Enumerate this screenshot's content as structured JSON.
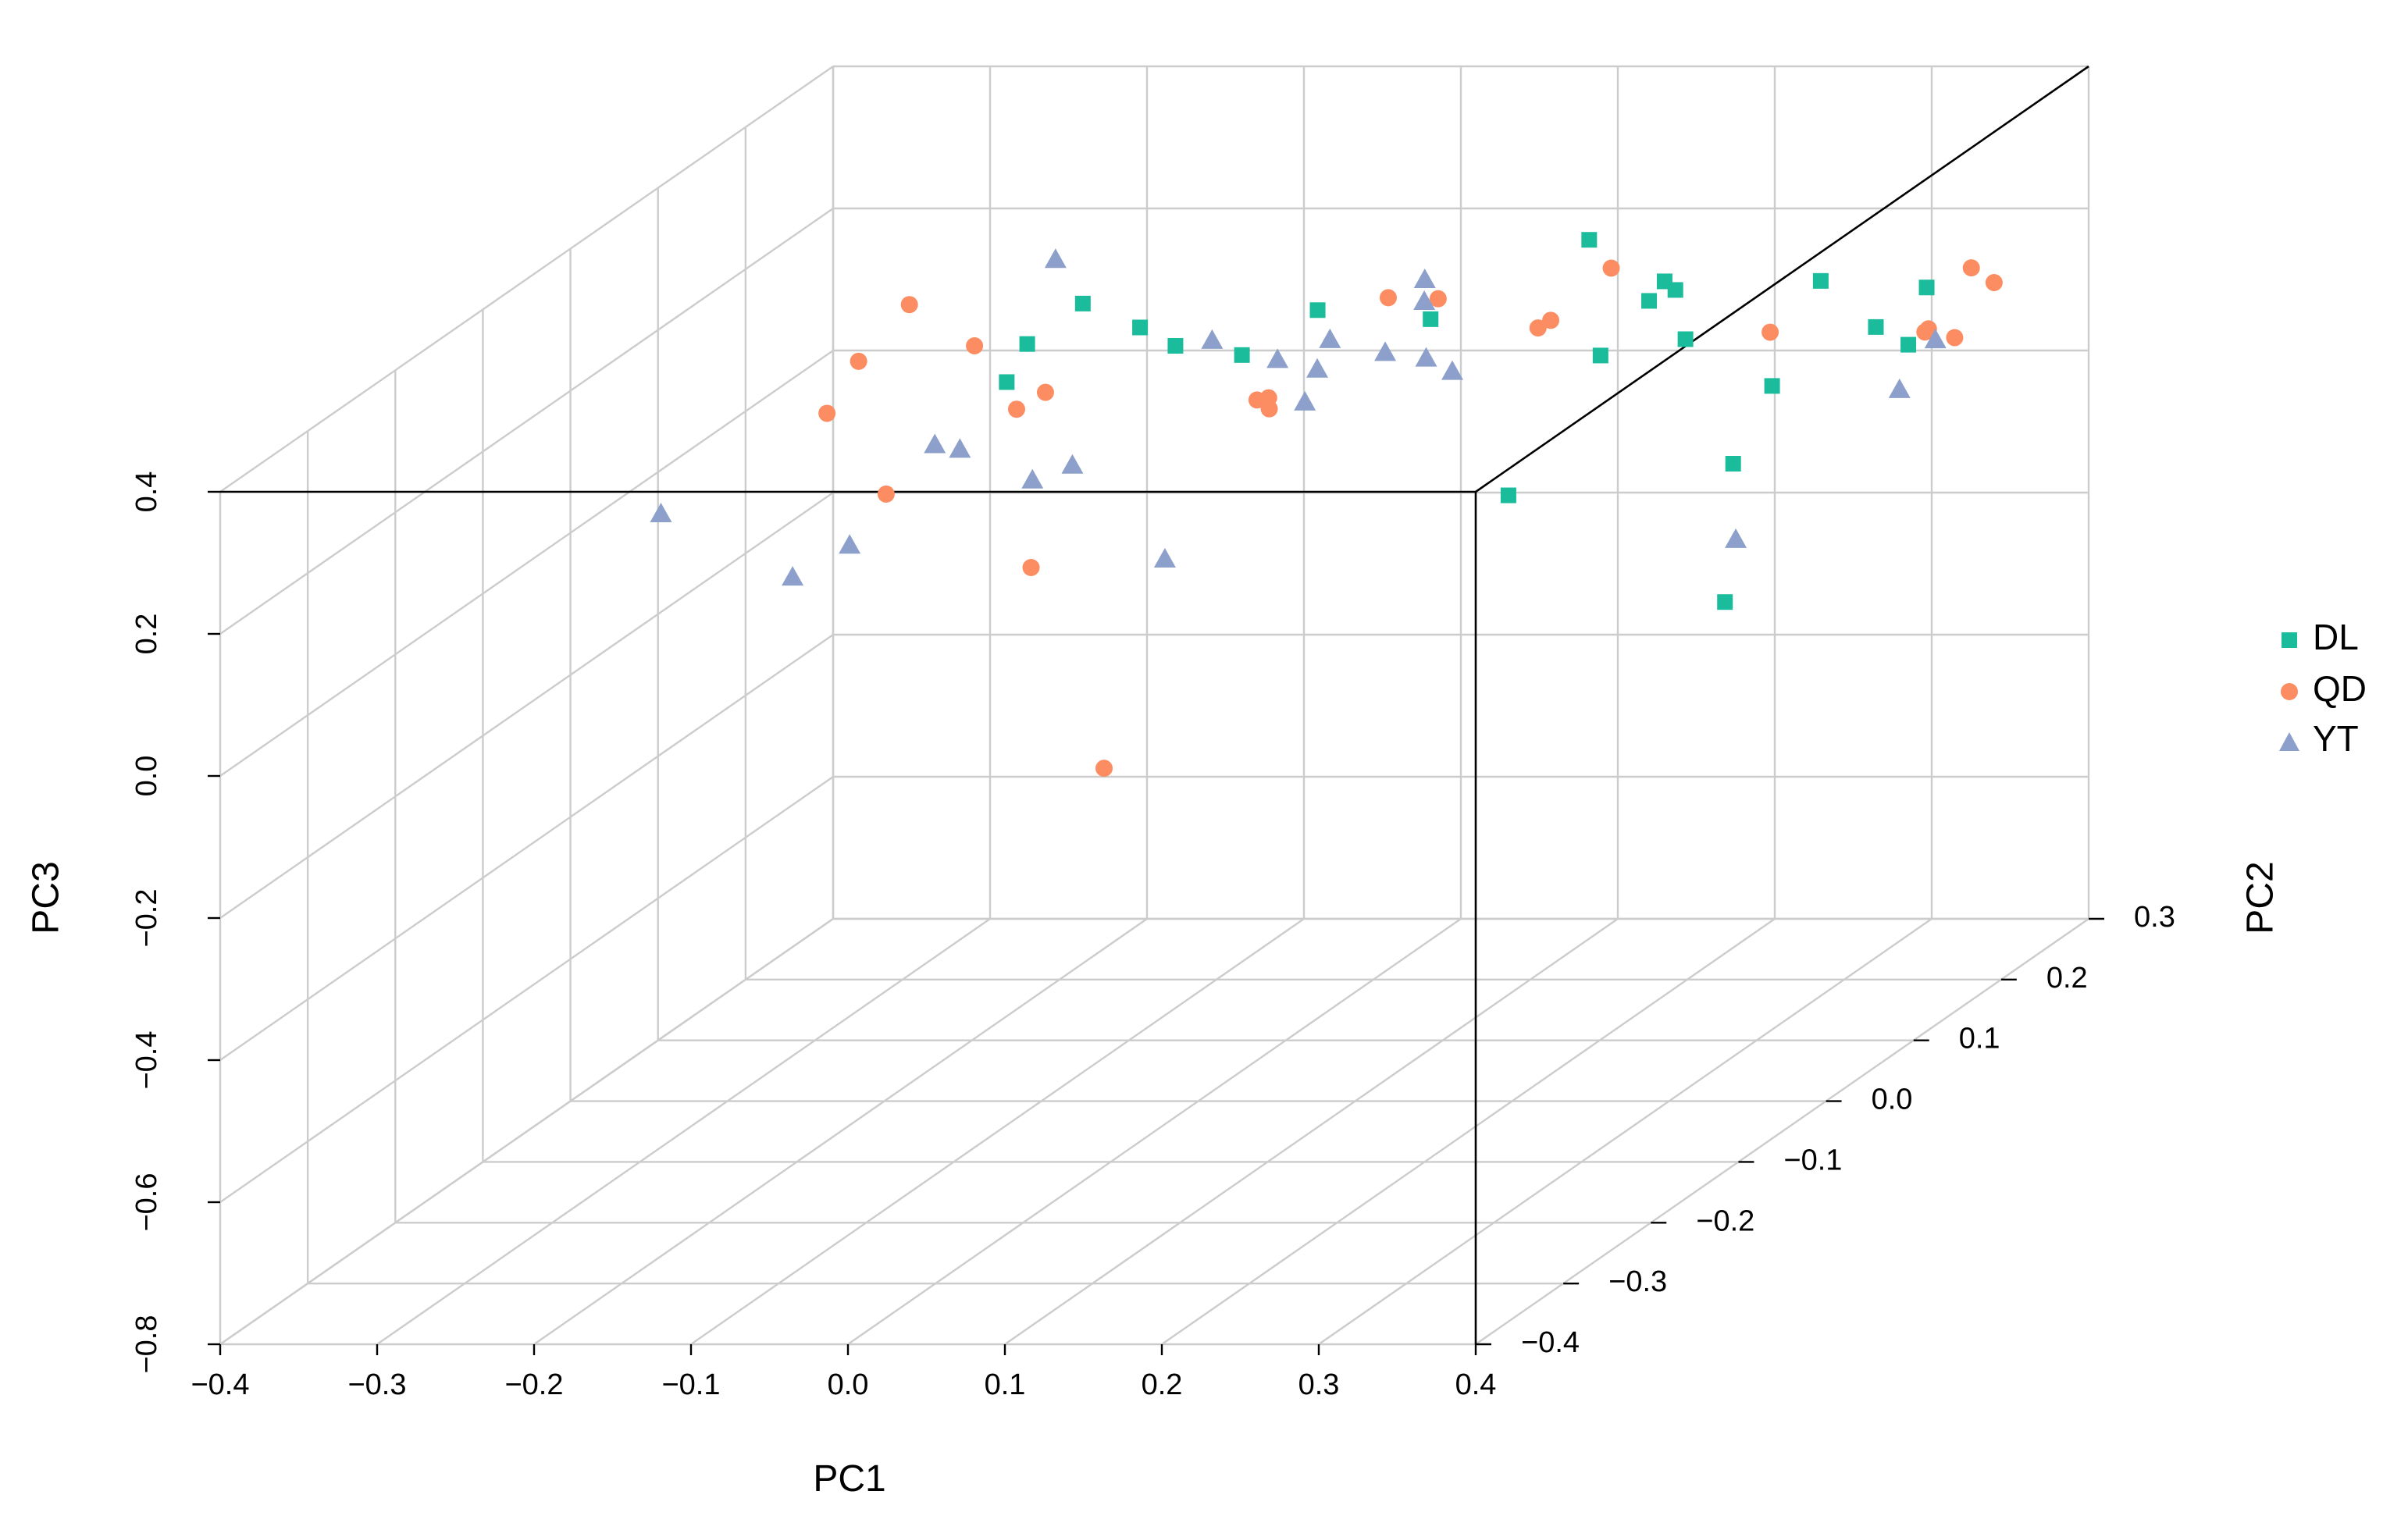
{
  "chart_data": {
    "type": "scatter",
    "projection": "3d",
    "xlabel": "PC1",
    "ylabel": "PC2",
    "zlabel": "PC3",
    "xlim": [
      -0.4,
      0.4
    ],
    "ylim": [
      -0.4,
      0.3
    ],
    "zlim": [
      -0.8,
      0.4
    ],
    "x_ticks": [
      "−0.4",
      "−0.3",
      "−0.2",
      "−0.1",
      "0.0",
      "0.1",
      "0.2",
      "0.3",
      "0.4"
    ],
    "y_ticks": [
      "−0.4",
      "−0.3",
      "−0.2",
      "−0.1",
      "0.0",
      "0.1",
      "0.2",
      "0.3"
    ],
    "z_ticks": [
      "−0.8",
      "−0.6",
      "−0.4",
      "−0.2",
      "0.0",
      "0.2",
      "0.4"
    ],
    "grid": true,
    "legend_position": "right",
    "series": [
      {
        "name": "DL",
        "marker": "square",
        "color": "#1abc9c",
        "points": [
          {
            "x": -0.059,
            "y": -0.026,
            "z": 0.345
          },
          {
            "x": 0.051,
            "y": 0.045,
            "z": 0.275
          },
          {
            "x": 0.128,
            "y": 0.036,
            "z": 0.27
          },
          {
            "x": 0.224,
            "y": 0.058,
            "z": 0.2
          },
          {
            "x": 0.166,
            "y": 0.149,
            "z": 0.285
          },
          {
            "x": 0.224,
            "y": 0.155,
            "z": 0.14
          },
          {
            "x": 0.265,
            "y": 0.07,
            "z": 0.282
          },
          {
            "x": 0.27,
            "y": 0.031,
            "z": 0.3
          },
          {
            "x": 0.305,
            "y": -0.014,
            "z": 0.366
          },
          {
            "x": 0.4,
            "y": 0.057,
            "z": 0.241
          },
          {
            "x": 0.318,
            "y": 0.141,
            "z": 0.234
          },
          {
            "x": 0.39,
            "y": 0.112,
            "z": 0.169
          },
          {
            "x": 0.4,
            "y": 0.115,
            "z": 0.247
          },
          {
            "x": 0.388,
            "y": -0.04,
            "z": 0.241
          },
          {
            "x": 0.4,
            "y": -0.106,
            "z": 0.188
          },
          {
            "x": 0.392,
            "y": -0.101,
            "z": -0.011
          },
          {
            "x": 0.22,
            "y": -0.04,
            "z": 0.087
          },
          {
            "x": 0.002,
            "y": -0.07,
            "z": 0.349
          },
          {
            "x": -0.071,
            "y": -0.068,
            "z": 0.324
          },
          {
            "x": -0.029,
            "y": 0.026,
            "z": 0.241
          },
          {
            "x": -0.098,
            "y": -0.043,
            "z": 0.249
          },
          {
            "x": 0.029,
            "y": -0.002,
            "z": 0.252
          }
        ]
      },
      {
        "name": "QD",
        "marker": "circle",
        "color": "#fc8d62",
        "points": [
          {
            "x": 0.101,
            "y": 0.093,
            "z": 0.25
          },
          {
            "x": 0.057,
            "y": -0.035,
            "z": 0.217
          },
          {
            "x": 0.022,
            "y": 0.041,
            "z": 0.155
          },
          {
            "x": 0.168,
            "y": 0.087,
            "z": 0.214
          },
          {
            "x": 0.223,
            "y": 0.072,
            "z": 0.311
          },
          {
            "x": 0.125,
            "y": -0.007,
            "z": 0.337
          },
          {
            "x": 0.233,
            "y": -0.015,
            "z": 0.312
          },
          {
            "x": 0.312,
            "y": 0.094,
            "z": 0.202
          },
          {
            "x": 0.4,
            "y": 0.166,
            "z": 0.231
          },
          {
            "x": 0.4,
            "y": 0.113,
            "z": 0.186
          },
          {
            "x": 0.4,
            "y": 0.117,
            "z": 0.187
          },
          {
            "x": 0.4,
            "y": 0.147,
            "z": 0.149
          },
          {
            "x": 0.4,
            "y": 0.192,
            "z": 0.188
          },
          {
            "x": 0.009,
            "y": 0.065,
            "z": 0.119
          },
          {
            "x": -0.179,
            "y": -0.009,
            "z": 0.329
          },
          {
            "x": -0.099,
            "y": -0.078,
            "z": 0.33
          },
          {
            "x": -0.075,
            "y": -0.04,
            "z": 0.232
          },
          {
            "x": -0.203,
            "y": -0.024,
            "z": 0.262
          },
          {
            "x": -0.104,
            "y": -0.021,
            "z": 0.192
          },
          {
            "x": -0.193,
            "y": -0.078,
            "z": 0.235
          },
          {
            "x": -0.104,
            "y": -0.17,
            "z": 0.2
          },
          {
            "x": -0.044,
            "y": -0.112,
            "z": 0.047
          },
          {
            "x": 0.012,
            "y": -0.129,
            "z": -0.221
          }
        ]
      },
      {
        "name": "YT",
        "marker": "triangle",
        "color": "#8da0cb",
        "points": [
          {
            "x": -0.087,
            "y": -0.007,
            "z": 0.391
          },
          {
            "x": 0.044,
            "y": -0.063,
            "z": 0.325
          },
          {
            "x": 0.055,
            "y": -0.008,
            "z": 0.251
          },
          {
            "x": 0.138,
            "y": 0.013,
            "z": 0.235
          },
          {
            "x": 0.046,
            "y": 0.068,
            "z": 0.214
          },
          {
            "x": 0.108,
            "y": 0.02,
            "z": 0.237
          },
          {
            "x": 0.082,
            "y": -0.011,
            "z": 0.24
          },
          {
            "x": 0.112,
            "y": 0.058,
            "z": 0.307
          },
          {
            "x": 0.105,
            "y": 0.07,
            "z": 0.266
          },
          {
            "x": 0.073,
            "y": -0.009,
            "z": 0.192
          },
          {
            "x": 0.129,
            "y": 0.059,
            "z": 0.177
          },
          {
            "x": 0.4,
            "y": 0.125,
            "z": 0.165
          },
          {
            "x": 0.4,
            "y": 0.084,
            "z": 0.13
          },
          {
            "x": 0.4,
            "y": -0.103,
            "z": 0.079
          },
          {
            "x": -0.238,
            "y": -0.187,
            "z": 0.187
          },
          {
            "x": -0.155,
            "y": -0.023,
            "z": 0.144
          },
          {
            "x": -0.04,
            "y": -0.072,
            "z": 0.157
          },
          {
            "x": -0.11,
            "y": -0.075,
            "z": 0.182
          },
          {
            "x": -0.061,
            "y": -0.08,
            "z": 0.143
          },
          {
            "x": -0.182,
            "y": -0.137,
            "z": 0.055
          },
          {
            "x": -0.173,
            "y": -0.088,
            "z": 0.058
          },
          {
            "x": 0.034,
            "y": -0.099,
            "z": 0.048
          }
        ]
      }
    ]
  }
}
